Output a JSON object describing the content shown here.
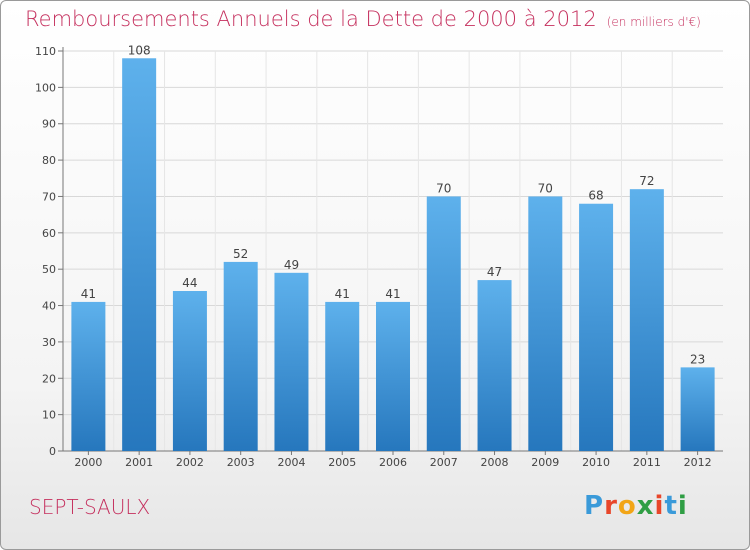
{
  "header": {
    "title": "Remboursements Annuels de la Dette de 2000 à 2012",
    "subtitle": "(en milliers d'€)"
  },
  "footer": {
    "commune": "SEPT-SAULX",
    "logo_letters": [
      "P",
      "r",
      "o",
      "x",
      "i",
      "t",
      "i"
    ],
    "logo_colors": [
      "#3a9ad9",
      "#e8462a",
      "#f2a516",
      "#2f9e44",
      "#e8462a",
      "#3a9ad9",
      "#2f9e44"
    ]
  },
  "chart_data": {
    "type": "bar",
    "title": "Remboursements Annuels de la Dette de 2000 à 2012",
    "subtitle": "(en milliers d'€)",
    "categories": [
      "2000",
      "2001",
      "2002",
      "2003",
      "2004",
      "2005",
      "2006",
      "2007",
      "2008",
      "2009",
      "2010",
      "2011",
      "2012"
    ],
    "values": [
      41,
      108,
      44,
      52,
      49,
      41,
      41,
      70,
      47,
      70,
      68,
      72,
      23
    ],
    "ylim": [
      0,
      110
    ],
    "yticks": [
      0,
      10,
      20,
      30,
      40,
      50,
      60,
      70,
      80,
      90,
      100,
      110
    ],
    "grid": true,
    "bar_color": "#3a8fd6",
    "data_labels": true
  }
}
